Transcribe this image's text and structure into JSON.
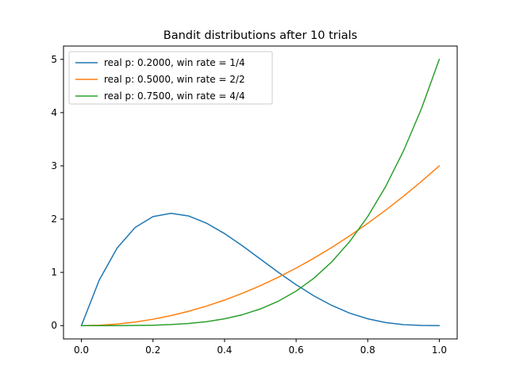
{
  "chart_data": {
    "type": "line",
    "title": "Bandit distributions after 10 trials",
    "xlabel": "",
    "ylabel": "",
    "xlim": [
      -0.05,
      1.05
    ],
    "ylim": [
      -0.25,
      5.25
    ],
    "xticks": [
      0.0,
      0.2,
      0.4,
      0.6,
      0.8,
      1.0
    ],
    "xtick_labels": [
      "0.0",
      "0.2",
      "0.4",
      "0.6",
      "0.8",
      "1.0"
    ],
    "yticks": [
      0,
      1,
      2,
      3,
      4,
      5
    ],
    "ytick_labels": [
      "0",
      "1",
      "2",
      "3",
      "4",
      "5"
    ],
    "grid": false,
    "legend_position": "top-left",
    "x": [
      0.0,
      0.05,
      0.1,
      0.15,
      0.2,
      0.25,
      0.3,
      0.35,
      0.4,
      0.45,
      0.5,
      0.55,
      0.6,
      0.65,
      0.7,
      0.75,
      0.8,
      0.85,
      0.9,
      0.95,
      1.0
    ],
    "series": [
      {
        "name": "real p: 0.2000, win rate = 1/4",
        "color": "#1f77b4",
        "values": [
          0.0,
          0.857,
          1.458,
          1.842,
          2.048,
          2.109,
          2.058,
          1.922,
          1.728,
          1.497,
          1.25,
          1.002,
          0.768,
          0.557,
          0.378,
          0.234,
          0.128,
          0.057,
          0.018,
          0.003,
          0.0
        ]
      },
      {
        "name": "real p: 0.5000, win rate = 2/2",
        "color": "#ff7f0e",
        "values": [
          0.0,
          0.0075,
          0.03,
          0.0675,
          0.12,
          0.1875,
          0.27,
          0.3675,
          0.48,
          0.6075,
          0.75,
          0.9075,
          1.08,
          1.2675,
          1.47,
          1.6875,
          1.92,
          2.1675,
          2.43,
          2.7075,
          3.0
        ]
      },
      {
        "name": "real p: 0.7500, win rate = 4/4",
        "color": "#2ca02c",
        "values": [
          0.0,
          3e-05,
          0.0005,
          0.0025,
          0.008,
          0.0195,
          0.0405,
          0.075,
          0.128,
          0.205,
          0.3125,
          0.4575,
          0.648,
          0.8925,
          1.2005,
          1.582,
          2.048,
          2.6105,
          3.2805,
          4.0725,
          5.0
        ]
      }
    ]
  }
}
